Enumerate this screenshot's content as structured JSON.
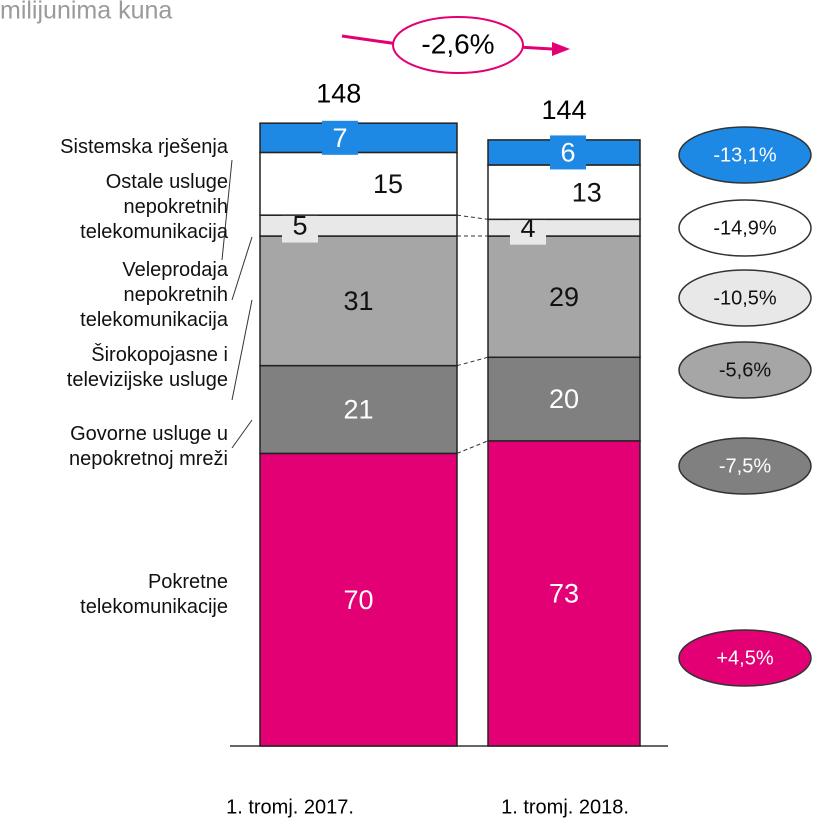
{
  "chart_data": {
    "type": "stacked-bar",
    "title": "milijunima kuna",
    "categories": [
      "1. tromj. 2017.",
      "1. tromj. 2018."
    ],
    "totals": [
      148,
      144
    ],
    "total_change": "-2,6%",
    "series": [
      {
        "name": "Pokretne telekomunikacije",
        "color": "#e20074",
        "values": [
          70,
          73
        ],
        "change": "+4,5%"
      },
      {
        "name": "Govorne usluge u nepokretnoj mreži",
        "color": "#808080",
        "values": [
          21,
          20
        ],
        "change": "-7,5%"
      },
      {
        "name": "Širokopojasne i televizijske usluge",
        "color": "#a6a6a6",
        "values": [
          31,
          29
        ],
        "change": "-5,6%"
      },
      {
        "name": "Veleprodaja nepokretnih telekomunikacija",
        "color": "#e8e8e8",
        "values": [
          5,
          4
        ],
        "change": "-10,5%"
      },
      {
        "name": "Ostale usluge nepokretnih telekomunikacija",
        "color": "#ffffff",
        "values": [
          15,
          13
        ],
        "change": "-14,9%"
      },
      {
        "name": "Sistemska rješenja",
        "color": "#1e88e5",
        "values": [
          7,
          6
        ],
        "change": "-13,1%"
      }
    ]
  }
}
